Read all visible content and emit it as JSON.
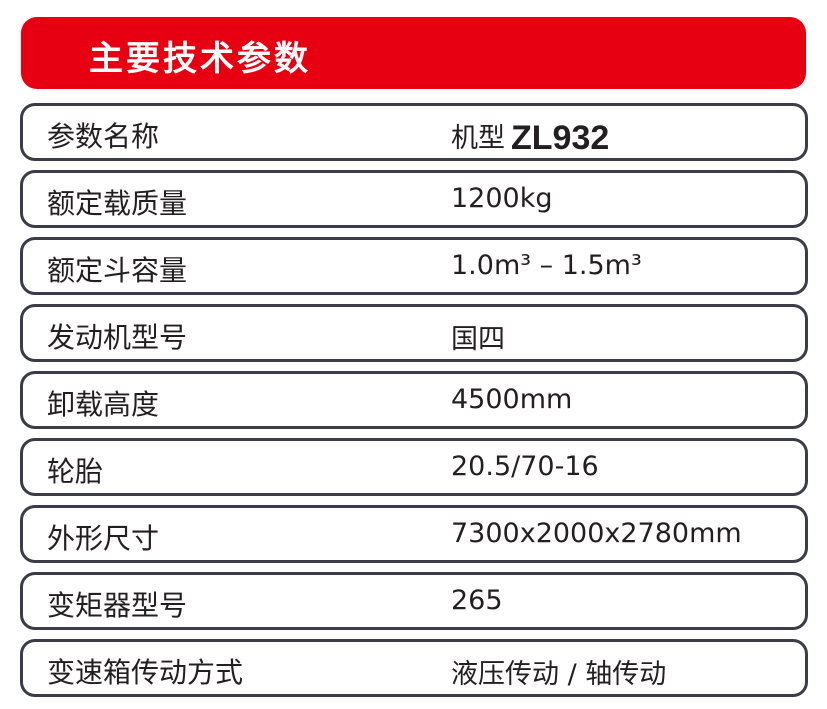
{
  "title": "主要技术参数",
  "header_row": {
    "label": "参数名称",
    "value_prefix": "机型",
    "model": "ZL932"
  },
  "rows": [
    {
      "label": "额定载质量",
      "value": "1200kg"
    },
    {
      "label": "额定斗容量",
      "value": "1.0m³ – 1.5m³"
    },
    {
      "label": "发动机型号",
      "value": "国四"
    },
    {
      "label": "卸载高度",
      "value": "4500mm"
    },
    {
      "label": "轮胎",
      "value": "20.5/70-16"
    },
    {
      "label": "外形尺寸",
      "value": "7300x2000x2780mm"
    },
    {
      "label": "变矩器型号",
      "value": "265"
    },
    {
      "label": "变速箱传动方式",
      "value": "液压传动 / 轴传动"
    }
  ],
  "colors": {
    "accent": "#e60012",
    "border": "#3a3d47"
  }
}
